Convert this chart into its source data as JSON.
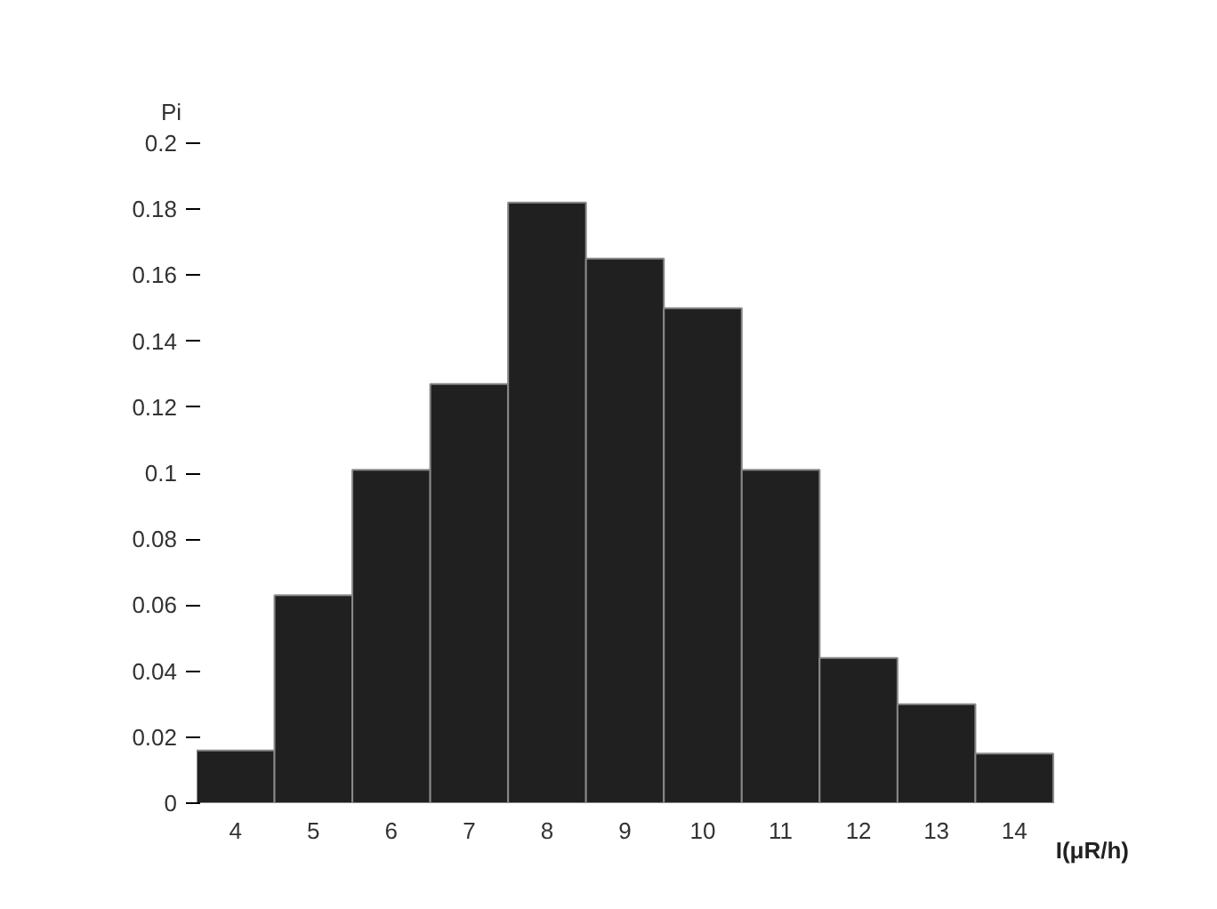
{
  "chart_data": {
    "type": "bar",
    "xlabel": "I(μR/h)",
    "ylabel": "Pi",
    "categories": [
      "4",
      "5",
      "6",
      "7",
      "8",
      "9",
      "10",
      "11",
      "12",
      "13",
      "14"
    ],
    "values": [
      0.016,
      0.063,
      0.101,
      0.127,
      0.182,
      0.165,
      0.15,
      0.101,
      0.044,
      0.03,
      0.015
    ],
    "color": "#202020",
    "ylim": [
      0,
      0.2
    ],
    "yticks": [
      0,
      0.02,
      0.04,
      0.06,
      0.08,
      0.1,
      0.12,
      0.14,
      0.16,
      0.18,
      0.2
    ],
    "grid": false
  }
}
